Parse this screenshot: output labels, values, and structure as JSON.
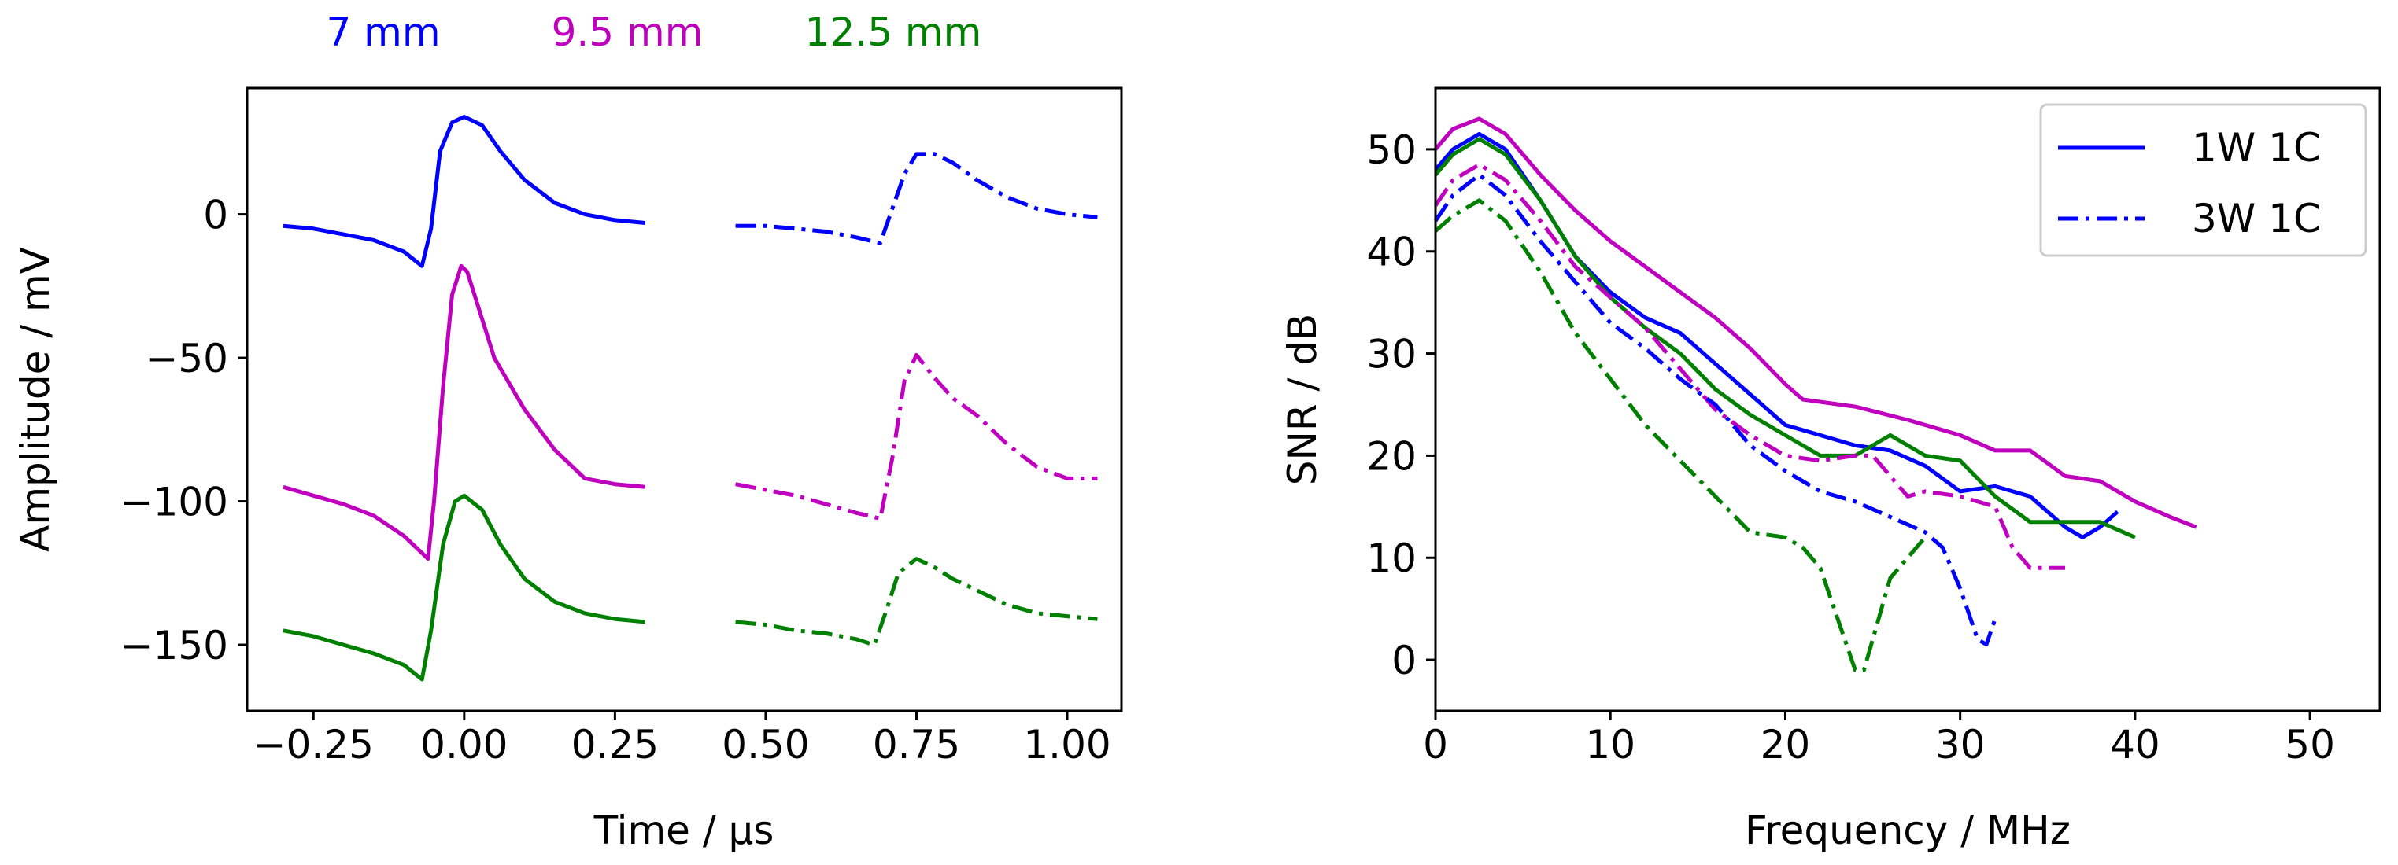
{
  "chart_data": [
    {
      "type": "line",
      "title": "",
      "xlabel": "Time / µs",
      "ylabel": "Amplitude / mV",
      "xlim": [
        -0.36,
        1.09
      ],
      "ylim": [
        -173,
        44
      ],
      "xticks": [
        -0.25,
        0.0,
        0.25,
        0.5,
        0.75,
        1.0
      ],
      "xtick_labels": [
        "−0.25",
        "0.00",
        "0.25",
        "0.50",
        "0.75",
        "1.00"
      ],
      "yticks": [
        0,
        -50,
        -100,
        -150
      ],
      "ytick_labels": [
        "0",
        "−50",
        "−100",
        "−150"
      ],
      "grid": false,
      "header_labels": [
        {
          "text": "7 mm",
          "color": "#0000ff"
        },
        {
          "text": "9.5 mm",
          "color": "#bf00bf"
        },
        {
          "text": "12.5 mm",
          "color": "#008000"
        }
      ],
      "series": [
        {
          "name": "7 mm 1W 1C",
          "color": "#0000ff",
          "style": "solid",
          "x": [
            -0.3,
            -0.25,
            -0.2,
            -0.15,
            -0.1,
            -0.07,
            -0.055,
            -0.04,
            -0.02,
            0.0,
            0.03,
            0.06,
            0.1,
            0.15,
            0.2,
            0.25,
            0.3
          ],
          "y": [
            -4,
            -5,
            -7,
            -9,
            -13,
            -18,
            -5,
            22,
            32,
            34,
            31,
            22,
            12,
            4,
            0,
            -2,
            -3
          ]
        },
        {
          "name": "7 mm 3W 1C",
          "color": "#0000ff",
          "style": "dashdot",
          "x": [
            0.45,
            0.5,
            0.55,
            0.6,
            0.65,
            0.69,
            0.71,
            0.73,
            0.75,
            0.78,
            0.81,
            0.85,
            0.9,
            0.95,
            1.0,
            1.05
          ],
          "y": [
            -4,
            -4,
            -5,
            -6,
            -8,
            -10,
            2,
            14,
            21,
            21,
            18,
            12,
            6,
            2,
            0,
            -1
          ]
        },
        {
          "name": "9.5 mm 1W 1C",
          "color": "#bf00bf",
          "style": "solid",
          "x": [
            -0.3,
            -0.25,
            -0.2,
            -0.15,
            -0.1,
            -0.06,
            -0.05,
            -0.035,
            -0.02,
            -0.005,
            0.005,
            0.02,
            0.05,
            0.1,
            0.15,
            0.2,
            0.25,
            0.3
          ],
          "y": [
            -95,
            -98,
            -101,
            -105,
            -112,
            -120,
            -100,
            -60,
            -28,
            -18,
            -20,
            -30,
            -50,
            -68,
            -82,
            -92,
            -94,
            -95
          ]
        },
        {
          "name": "9.5 mm 3W 1C",
          "color": "#bf00bf",
          "style": "dashdot",
          "x": [
            0.45,
            0.5,
            0.55,
            0.6,
            0.65,
            0.69,
            0.71,
            0.73,
            0.75,
            0.78,
            0.81,
            0.85,
            0.9,
            0.95,
            1.0,
            1.05
          ],
          "y": [
            -94,
            -96,
            -98,
            -101,
            -104,
            -106,
            -85,
            -58,
            -49,
            -57,
            -64,
            -70,
            -80,
            -88,
            -92,
            -92
          ]
        },
        {
          "name": "12.5 mm 1W 1C",
          "color": "#008000",
          "style": "solid",
          "x": [
            -0.3,
            -0.25,
            -0.2,
            -0.15,
            -0.1,
            -0.07,
            -0.055,
            -0.035,
            -0.015,
            0.0,
            0.03,
            0.06,
            0.1,
            0.15,
            0.2,
            0.25,
            0.3
          ],
          "y": [
            -145,
            -147,
            -150,
            -153,
            -157,
            -162,
            -145,
            -115,
            -100,
            -98,
            -103,
            -115,
            -127,
            -135,
            -139,
            -141,
            -142
          ]
        },
        {
          "name": "12.5 mm 3W 1C",
          "color": "#008000",
          "style": "dashdot",
          "x": [
            0.45,
            0.5,
            0.55,
            0.6,
            0.65,
            0.68,
            0.7,
            0.72,
            0.75,
            0.78,
            0.81,
            0.85,
            0.9,
            0.95,
            1.0,
            1.05
          ],
          "y": [
            -142,
            -143,
            -145,
            -146,
            -148,
            -150,
            -138,
            -125,
            -120,
            -123,
            -127,
            -131,
            -136,
            -139,
            -140,
            -141
          ]
        }
      ]
    },
    {
      "type": "line",
      "title": "",
      "xlabel": "Frequency / MHz",
      "ylabel": "SNR / dB",
      "xlim": [
        0,
        54
      ],
      "ylim": [
        -5,
        56
      ],
      "xticks": [
        0,
        10,
        20,
        30,
        40,
        50
      ],
      "xtick_labels": [
        "0",
        "10",
        "20",
        "30",
        "40",
        "50"
      ],
      "yticks": [
        0,
        10,
        20,
        30,
        40,
        50
      ],
      "ytick_labels": [
        "0",
        "10",
        "20",
        "30",
        "40",
        "50"
      ],
      "grid": false,
      "legend": {
        "position": "top-right",
        "entries": [
          {
            "label": "1W 1C",
            "color": "#0000ff",
            "style": "solid"
          },
          {
            "label": "3W 1C",
            "color": "#0000ff",
            "style": "dashdot"
          }
        ]
      },
      "series": [
        {
          "name": "9.5 mm 1W 1C",
          "color": "#bf00bf",
          "style": "solid",
          "x": [
            0,
            1,
            2.5,
            4,
            6,
            8,
            10,
            12,
            14,
            16,
            18,
            20,
            21,
            24,
            27,
            30,
            32,
            34,
            36,
            38,
            40,
            42,
            43.5
          ],
          "y": [
            50,
            52,
            53,
            51.5,
            47.5,
            44,
            41,
            38.5,
            36,
            33.5,
            30.5,
            27,
            25.5,
            24.8,
            23.5,
            22,
            20.5,
            20.5,
            18,
            17.5,
            15.5,
            14,
            13
          ]
        },
        {
          "name": "7 mm 1W 1C",
          "color": "#0000ff",
          "style": "solid",
          "x": [
            0,
            1,
            2.5,
            4,
            6,
            8,
            10,
            12,
            14,
            16,
            18,
            20,
            22,
            24,
            26,
            28,
            30,
            32,
            34,
            36,
            37,
            38,
            39
          ],
          "y": [
            48,
            50,
            51.5,
            50,
            45,
            39.5,
            36,
            33.5,
            32,
            29,
            26,
            23,
            22,
            21,
            20.5,
            19,
            16.5,
            17,
            16,
            13,
            12,
            13,
            14.5
          ]
        },
        {
          "name": "12.5 mm 1W 1C",
          "color": "#008000",
          "style": "solid",
          "x": [
            0,
            1,
            2.5,
            4,
            6,
            8,
            10,
            12,
            14,
            16,
            18,
            20,
            22,
            24,
            26,
            28,
            30,
            32,
            34,
            36,
            38,
            40
          ],
          "y": [
            47.5,
            49.5,
            51,
            49.5,
            45,
            39.5,
            35.5,
            32.5,
            30,
            26.5,
            24,
            22,
            20,
            20,
            22,
            20,
            19.5,
            16,
            13.5,
            13.5,
            13.5,
            12
          ]
        },
        {
          "name": "9.5 mm 3W 1C",
          "color": "#bf00bf",
          "style": "dashdot",
          "x": [
            0,
            1,
            2.5,
            4,
            6,
            8,
            10,
            12,
            14,
            16,
            18,
            20,
            22,
            24,
            25,
            26,
            27,
            28,
            30,
            32,
            33,
            34,
            36
          ],
          "y": [
            44.5,
            47,
            48.5,
            47,
            43,
            38.5,
            35.5,
            32.5,
            28.5,
            24.5,
            22,
            20,
            19.5,
            20,
            20,
            18,
            16,
            16.5,
            16,
            15,
            11,
            9,
            9
          ]
        },
        {
          "name": "7 mm 3W 1C",
          "color": "#0000ff",
          "style": "dashdot",
          "x": [
            0,
            1,
            2.5,
            4,
            6,
            8,
            10,
            12,
            14,
            16,
            18,
            20,
            22,
            24,
            26,
            28,
            29,
            30,
            31,
            31.5,
            32
          ],
          "y": [
            43,
            45.5,
            47.5,
            45.5,
            41,
            37,
            33,
            30.5,
            27.5,
            25,
            21,
            18.5,
            16.5,
            15.5,
            14,
            12.5,
            11,
            7,
            2,
            1.5,
            4
          ]
        },
        {
          "name": "12.5 mm 3W 1C",
          "color": "#008000",
          "style": "dashdot",
          "x": [
            0,
            1,
            2.5,
            4,
            6,
            8,
            10,
            12,
            14,
            16,
            18,
            20,
            21,
            22,
            23,
            24,
            24.5,
            25,
            26,
            28
          ],
          "y": [
            42,
            43.5,
            45,
            43,
            38,
            32,
            27.5,
            23,
            19.5,
            16,
            12.5,
            12,
            11,
            9,
            4,
            -1,
            -1,
            2,
            8,
            12
          ]
        }
      ]
    }
  ]
}
